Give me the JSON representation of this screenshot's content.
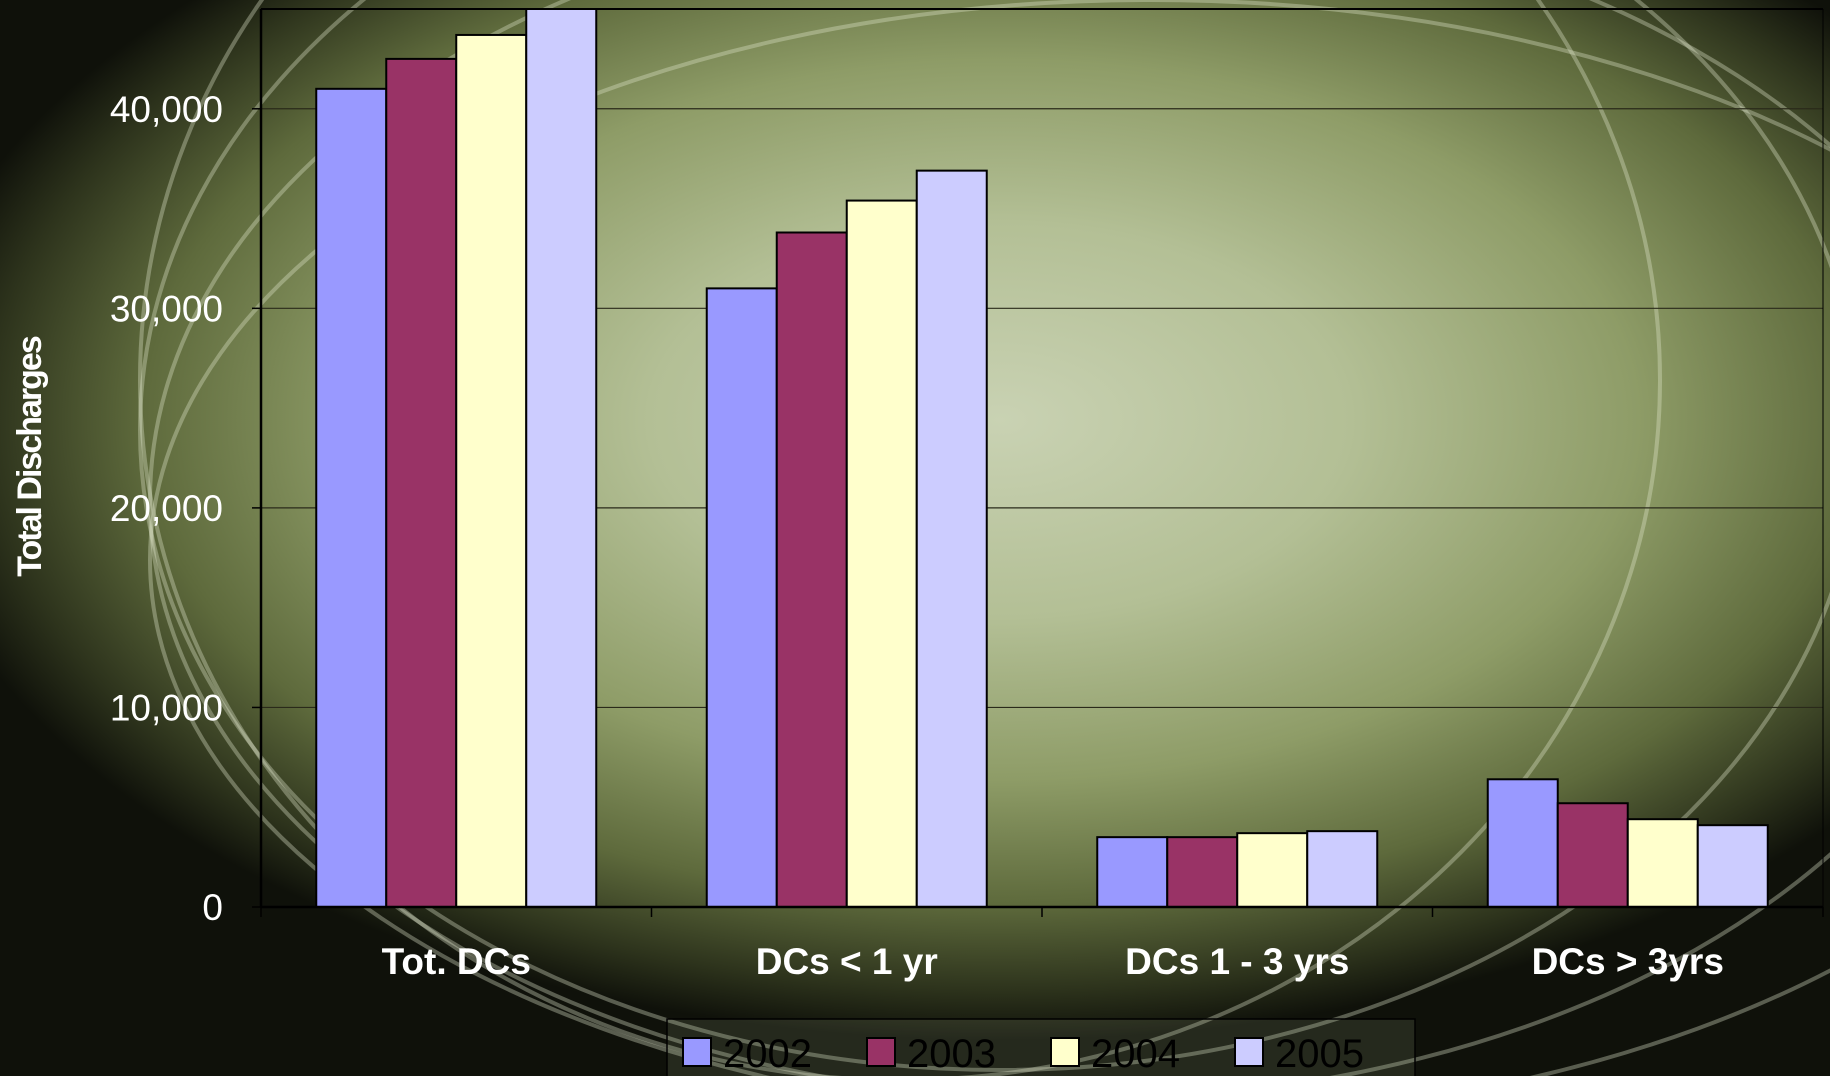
{
  "chart_data": {
    "type": "bar",
    "ylabel": "Total Discharges",
    "ylim": [
      0,
      45000
    ],
    "yticks": [
      "0",
      "10,000",
      "20,000",
      "30,000",
      "40,000"
    ],
    "ytick_values": [
      0,
      10000,
      20000,
      30000,
      40000
    ],
    "categories": [
      "Tot. DCs",
      "DCs < 1 yr",
      "DCs 1 - 3 yrs",
      "DCs > 3yrs"
    ],
    "series": [
      {
        "name": "2002",
        "color": "#9999ff",
        "values": [
          41000,
          31000,
          3500,
          6400
        ]
      },
      {
        "name": "2003",
        "color": "#993366",
        "values": [
          42500,
          33800,
          3500,
          5200
        ]
      },
      {
        "name": "2004",
        "color": "#ffffcc",
        "values": [
          43700,
          35400,
          3700,
          4400
        ]
      },
      {
        "name": "2005",
        "color": "#ccccff",
        "values": [
          45000,
          36900,
          3800,
          4100
        ]
      }
    ],
    "grid": true,
    "legend_position": "bottom"
  }
}
